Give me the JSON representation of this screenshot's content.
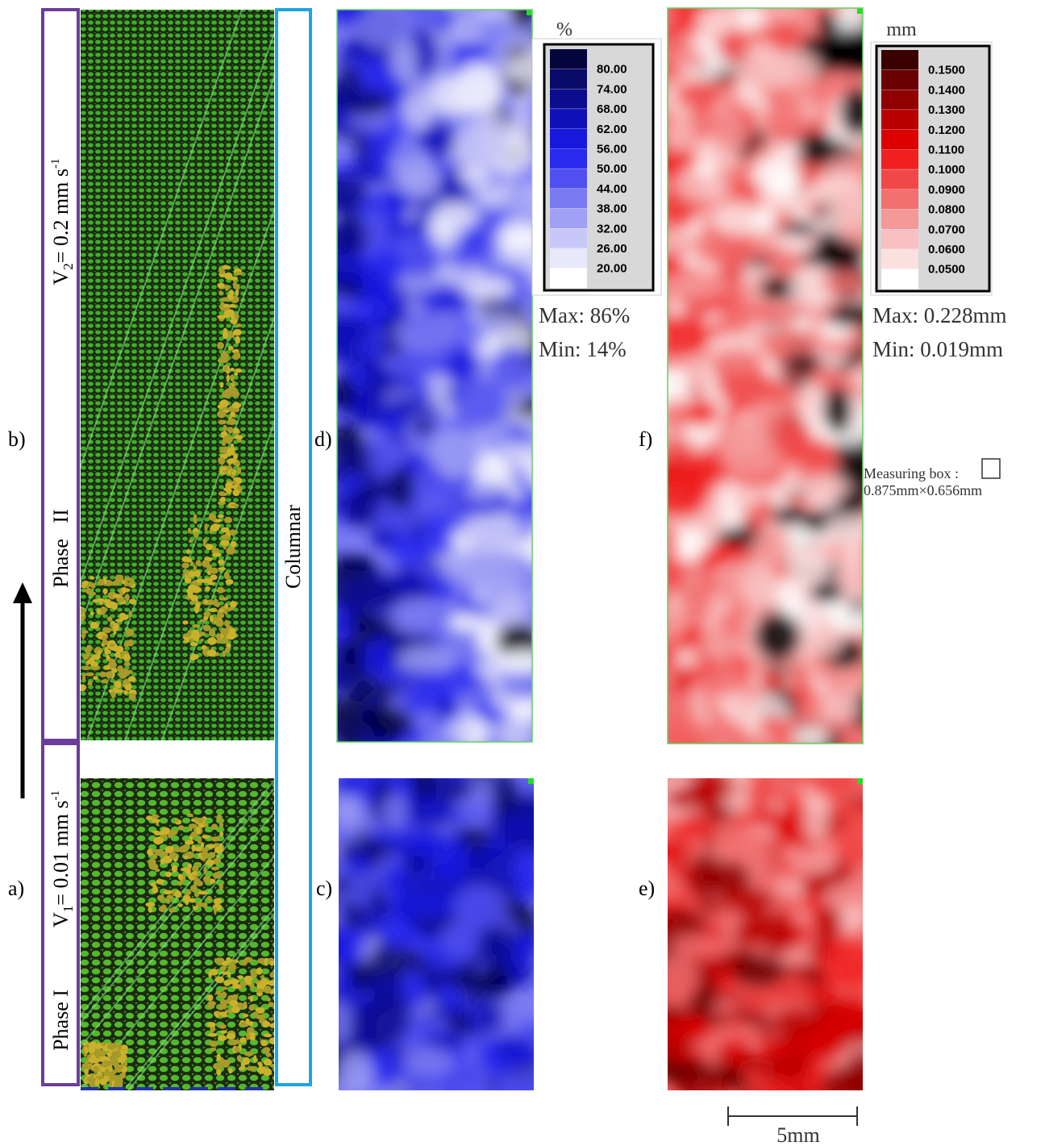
{
  "panel_labels": {
    "a": "a)",
    "b": "b)",
    "c": "c)",
    "d": "d)",
    "e": "e)",
    "f": "f)"
  },
  "phase2": {
    "label": "Phase   II",
    "velocity": {
      "symbol": "V",
      "subscript": "2",
      "text": "= 0.2 mm s",
      "superscript": "-1"
    }
  },
  "phase1": {
    "label": "Phase I",
    "velocity": {
      "symbol": "V",
      "subscript": "1",
      "text": "= 0.01 mm s",
      "superscript": "-1"
    }
  },
  "structure_label": "Columnar",
  "fraction_legend": {
    "unit": "%",
    "items": [
      {
        "label": "80.00",
        "color": "#05053d"
      },
      {
        "label": "74.00",
        "color": "#0a0a6a"
      },
      {
        "label": "68.00",
        "color": "#0c0c8f"
      },
      {
        "label": "62.00",
        "color": "#1010b8"
      },
      {
        "label": "56.00",
        "color": "#1818dd"
      },
      {
        "label": "50.00",
        "color": "#2a2aee"
      },
      {
        "label": "44.00",
        "color": "#5050f0"
      },
      {
        "label": "38.00",
        "color": "#7a7af2"
      },
      {
        "label": "32.00",
        "color": "#a0a0f4"
      },
      {
        "label": "26.00",
        "color": "#c8c8f8"
      },
      {
        "label": "20.00",
        "color": "#e8e8fb"
      }
    ],
    "max": "Max: 86%",
    "min": "Min: 14%"
  },
  "size_legend": {
    "unit": "mm",
    "items": [
      {
        "label": "0.1500",
        "color": "#3a0000"
      },
      {
        "label": "0.1400",
        "color": "#6a0000"
      },
      {
        "label": "0.1300",
        "color": "#900000"
      },
      {
        "label": "0.1200",
        "color": "#b80000"
      },
      {
        "label": "0.1100",
        "color": "#dd0000"
      },
      {
        "label": "0.1000",
        "color": "#f02020"
      },
      {
        "label": "0.0900",
        "color": "#f04848"
      },
      {
        "label": "0.0800",
        "color": "#f27070"
      },
      {
        "label": "0.0700",
        "color": "#f49898"
      },
      {
        "label": "0.0600",
        "color": "#f8c0c0"
      },
      {
        "label": "0.0500",
        "color": "#fbe0e0"
      }
    ],
    "max": "Max: 0.228mm",
    "min": "Min: 0.019mm"
  },
  "measuring_box": {
    "label": "Measuring box :",
    "size": "0.875mm×0.656mm"
  },
  "scale_bar": "5mm"
}
